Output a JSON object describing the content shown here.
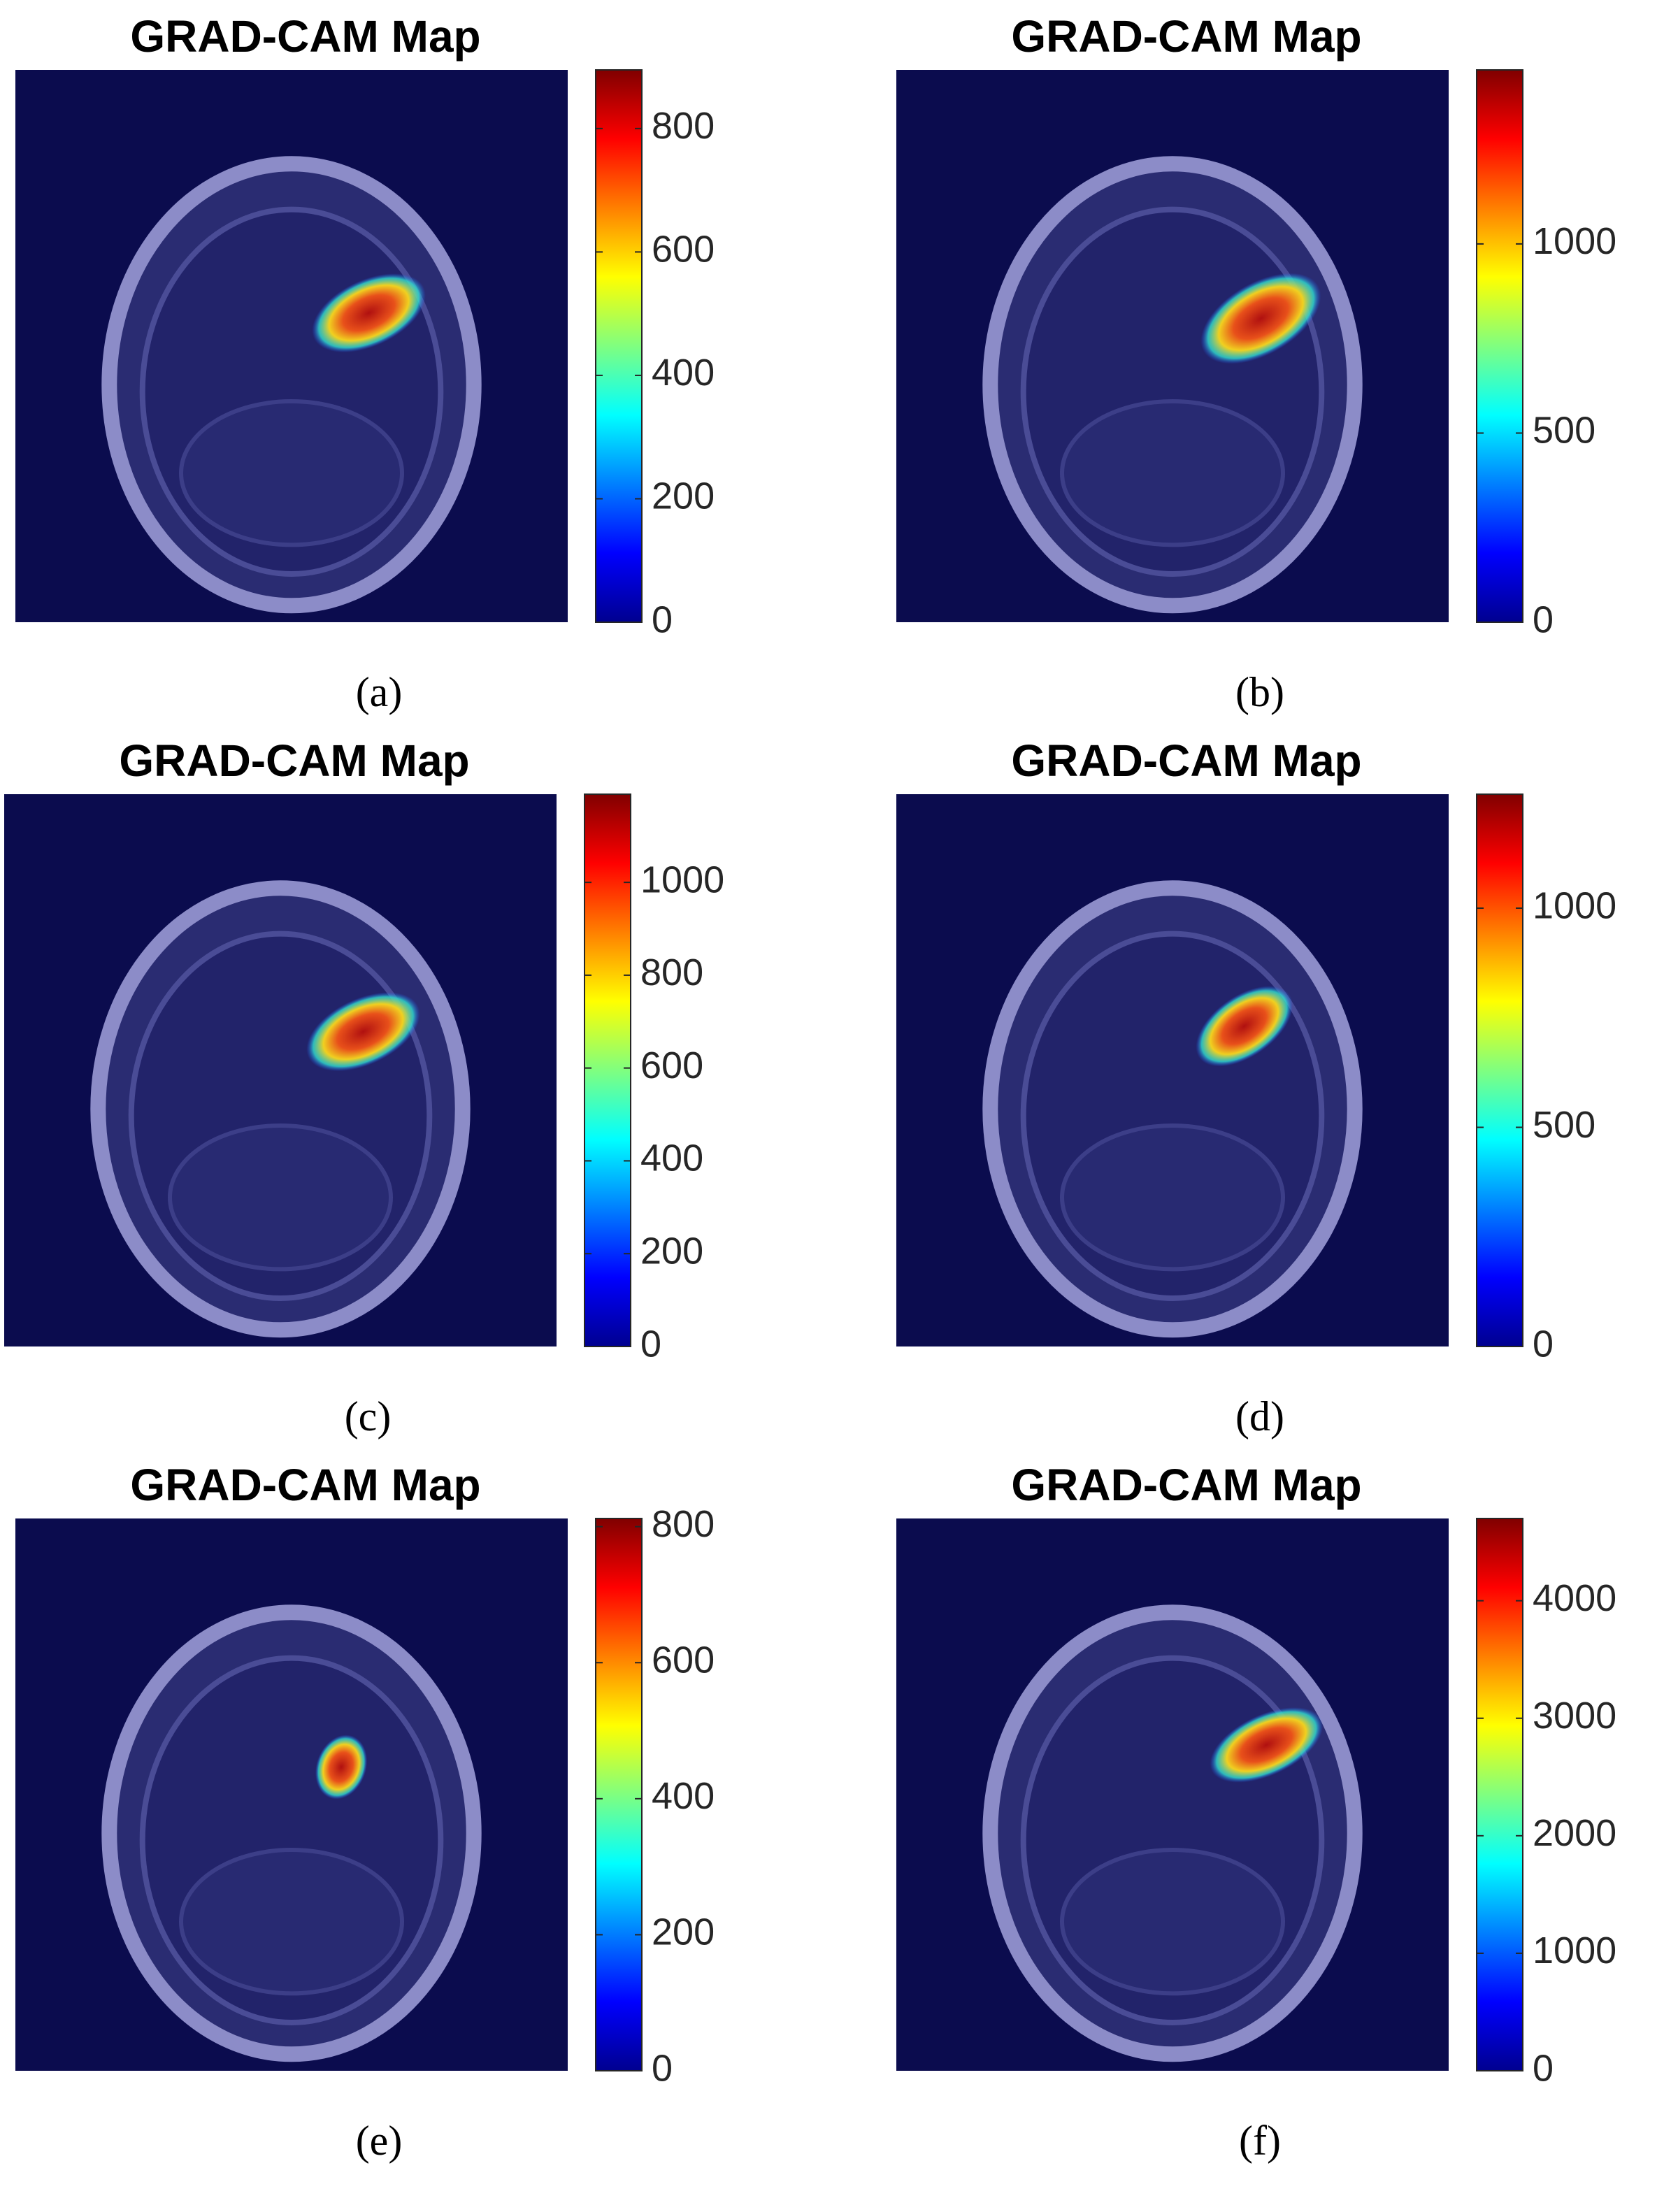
{
  "chart_data": [
    {
      "type": "heatmap",
      "title": "GRAD-CAM Map",
      "caption": "(a)",
      "clim": [
        0,
        895
      ],
      "cticks": [
        0,
        200,
        400,
        600,
        800
      ]
    },
    {
      "type": "heatmap",
      "title": "GRAD-CAM Map",
      "caption": "(b)",
      "clim": [
        0,
        1460
      ],
      "cticks": [
        0,
        500,
        1000
      ]
    },
    {
      "type": "heatmap",
      "title": "GRAD-CAM Map",
      "caption": "(c)",
      "clim": [
        0,
        1190
      ],
      "cticks": [
        0,
        200,
        400,
        600,
        800,
        1000
      ]
    },
    {
      "type": "heatmap",
      "title": "GRAD-CAM Map",
      "caption": "(d)",
      "clim": [
        0,
        1260
      ],
      "cticks": [
        0,
        500,
        1000
      ]
    },
    {
      "type": "heatmap",
      "title": "GRAD-CAM Map",
      "caption": "(e)",
      "clim": [
        0,
        812
      ],
      "cticks": [
        0,
        200,
        400,
        600,
        800
      ]
    },
    {
      "type": "heatmap",
      "title": "GRAD-CAM Map",
      "caption": "(f)",
      "clim": [
        0,
        4700
      ],
      "cticks": [
        0,
        1000,
        2000,
        3000,
        4000
      ]
    }
  ]
}
